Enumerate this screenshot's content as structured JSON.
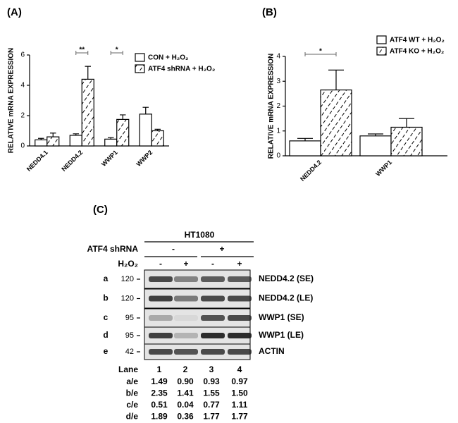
{
  "chart_data": [
    {
      "type": "bar",
      "panel": "(A)",
      "ylabel": "RELATIVE mRNA EXPRESSION",
      "categories": [
        "NEDD4.1",
        "NEDD4.2",
        "WWP1",
        "WWP2"
      ],
      "ylim": [
        0,
        6
      ],
      "yticks": [
        0,
        2,
        4,
        6
      ],
      "series": [
        {
          "name": "CON + H₂O₂",
          "color": "#ffffff",
          "values": [
            0.4,
            0.7,
            0.45,
            2.1
          ],
          "errors": [
            0.1,
            0.1,
            0.1,
            0.45
          ]
        },
        {
          "name": "ATF4 shRNA + H₂O₂",
          "color": "#ffffff",
          "pattern": "hatch",
          "values": [
            0.6,
            4.4,
            1.75,
            1.0
          ],
          "errors": [
            0.25,
            0.85,
            0.3,
            0.1
          ]
        }
      ],
      "annotations": [
        {
          "text": "**",
          "category": "NEDD4.2"
        },
        {
          "text": "*",
          "category": "WWP1"
        }
      ],
      "legend": "upper right"
    },
    {
      "type": "bar",
      "panel": "(B)",
      "ylabel": "RELATIVE mRNA EXPRESSION",
      "categories": [
        "NEDD4.2",
        "WWP1"
      ],
      "ylim": [
        0,
        4
      ],
      "yticks": [
        0,
        1,
        2,
        3,
        4
      ],
      "series": [
        {
          "name": "ATF4 WT + H₂O₂",
          "color": "#ffffff",
          "values": [
            0.6,
            0.8
          ],
          "errors": [
            0.1,
            0.08
          ]
        },
        {
          "name": "ATF4 KO + H₂O₂",
          "color": "#ffffff",
          "pattern": "hatch",
          "values": [
            2.65,
            1.15
          ],
          "errors": [
            0.8,
            0.35
          ]
        }
      ],
      "annotations": [
        {
          "text": "*",
          "category": "NEDD4.2"
        }
      ],
      "legend": "upper right"
    }
  ],
  "blot": {
    "panel": "(C)",
    "cell_line": "HT1080",
    "conditions": [
      {
        "label": "ATF4 shRNA",
        "values": [
          "-",
          "+"
        ]
      },
      {
        "label": "H₂O₂",
        "values": [
          "-",
          "+",
          "-",
          "+"
        ]
      }
    ],
    "rows": [
      {
        "id": "a",
        "marker": 120,
        "label": "NEDD4.2 (SE)"
      },
      {
        "id": "b",
        "marker": 120,
        "label": "NEDD4.2 (LE)"
      },
      {
        "id": "c",
        "marker": 95,
        "label": "WWP1 (SE)"
      },
      {
        "id": "d",
        "marker": 95,
        "label": "WWP1 (LE)"
      },
      {
        "id": "e",
        "marker": 42,
        "label": "ACTIN"
      }
    ],
    "table": {
      "header": [
        "Lane",
        "1",
        "2",
        "3",
        "4"
      ],
      "rows": [
        [
          "a/e",
          "1.49",
          "0.90",
          "0.93",
          "0.97"
        ],
        [
          "b/e",
          "2.35",
          "1.41",
          "1.55",
          "1.50"
        ],
        [
          "c/e",
          "0.51",
          "0.04",
          "0.77",
          "1.11"
        ],
        [
          "d/e",
          "1.89",
          "0.36",
          "1.77",
          "1.77"
        ]
      ]
    }
  }
}
